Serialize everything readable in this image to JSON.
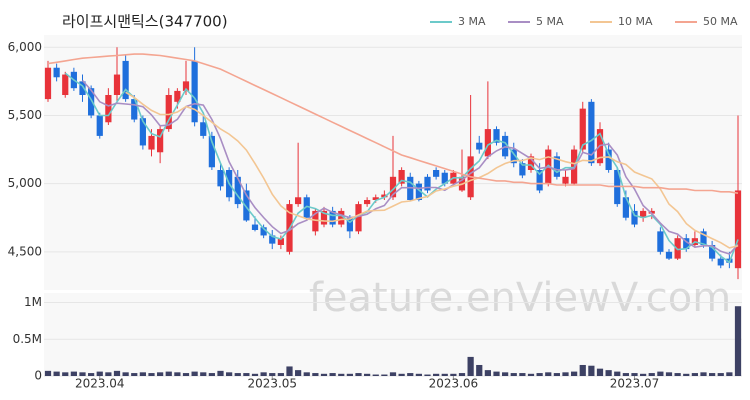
{
  "chart_data": {
    "type": "candlestick",
    "title": "라이프시맨틱스(347700)",
    "watermark": "feature.enViewV.com",
    "up_color": "#e8333a",
    "down_color": "#1f6fdc",
    "grid": true,
    "open": [
      5620,
      5850,
      5650,
      5820,
      5750,
      5700,
      5500,
      5450,
      5650,
      5900,
      5620,
      5480,
      5250,
      5230,
      5400,
      5600,
      5680,
      5900,
      5450,
      5350,
      5100,
      5100,
      5050,
      4950,
      4700,
      4680,
      4620,
      4550,
      4500,
      4850,
      4900,
      4650,
      4700,
      4800,
      4700,
      4750,
      4650,
      4850,
      4880,
      4900,
      4900,
      5000,
      5050,
      5000,
      5050,
      5100,
      5080,
      5000,
      4950,
      4900,
      5300,
      5200,
      5400,
      5350,
      5250,
      5150,
      5100,
      5100,
      5000,
      5200,
      5000,
      5000,
      5250,
      5600,
      5150,
      5250,
      5100,
      4900,
      4800,
      4750,
      4780,
      4650,
      4500,
      4450,
      4600,
      4550,
      4650,
      4550,
      4450,
      4450,
      4380
    ],
    "high": [
      5900,
      5880,
      5820,
      5850,
      5800,
      5720,
      5520,
      5700,
      6000,
      5950,
      5650,
      5500,
      5400,
      5420,
      5700,
      5700,
      5900,
      6000,
      5500,
      5380,
      5150,
      5120,
      5100,
      5000,
      4760,
      4700,
      4660,
      4620,
      4880,
      5300,
      4920,
      4820,
      4830,
      4830,
      4820,
      4770,
      4870,
      4900,
      4920,
      4950,
      5350,
      5120,
      5080,
      5020,
      5070,
      5120,
      5100,
      5100,
      5250,
      5650,
      5350,
      5750,
      5420,
      5380,
      5300,
      5180,
      5220,
      5150,
      5280,
      5230,
      5100,
      5280,
      5600,
      5620,
      5450,
      5300,
      5120,
      4950,
      4850,
      4820,
      4820,
      4680,
      4520,
      4620,
      4630,
      4650,
      4670,
      4580,
      4480,
      4500,
      5500
    ],
    "low": [
      5600,
      5750,
      5630,
      5680,
      5600,
      5480,
      5330,
      5430,
      5600,
      5600,
      5450,
      5250,
      5200,
      5150,
      5380,
      5550,
      5650,
      5420,
      5330,
      5100,
      4950,
      4870,
      4820,
      4720,
      4650,
      4600,
      4520,
      4520,
      4480,
      4830,
      4730,
      4620,
      4680,
      4680,
      4680,
      4600,
      4630,
      4830,
      4860,
      4880,
      4880,
      4980,
      4870,
      4870,
      4930,
      5030,
      4980,
      4980,
      4940,
      4880,
      5220,
      5180,
      5280,
      5180,
      5120,
      5040,
      5080,
      4930,
      4980,
      5030,
      4980,
      4990,
      5230,
      5130,
      5130,
      5080,
      4830,
      4730,
      4680,
      4720,
      4740,
      4480,
      4440,
      4440,
      4500,
      4530,
      4530,
      4430,
      4380,
      4380,
      4300
    ],
    "close": [
      5850,
      5780,
      5800,
      5700,
      5650,
      5500,
      5350,
      5650,
      5800,
      5620,
      5470,
      5280,
      5350,
      5400,
      5650,
      5680,
      5750,
      5450,
      5350,
      5120,
      4980,
      4900,
      4850,
      4730,
      4660,
      4620,
      4560,
      4600,
      4850,
      4900,
      4750,
      4800,
      4800,
      4700,
      4800,
      4650,
      4850,
      4880,
      4900,
      4920,
      5050,
      5100,
      4880,
      4880,
      4950,
      5050,
      5000,
      5080,
      5050,
      5200,
      5250,
      5400,
      5300,
      5200,
      5150,
      5060,
      5200,
      4950,
      5250,
      5050,
      5050,
      5250,
      5550,
      5150,
      5400,
      5100,
      4850,
      4750,
      4700,
      4800,
      4800,
      4500,
      4450,
      4600,
      4520,
      4600,
      4550,
      4450,
      4400,
      4420,
      4950
    ],
    "ylim": [
      4220,
      6090
    ],
    "yticks": [
      {
        "value": 4500,
        "label": "4,500"
      },
      {
        "value": 5000,
        "label": "5,000"
      },
      {
        "value": 5500,
        "label": "5,500"
      },
      {
        "value": 6000,
        "label": "6,000"
      }
    ],
    "xticks": [
      {
        "value": 6,
        "label": "2023.04"
      },
      {
        "value": 26,
        "label": "2023.05"
      },
      {
        "value": 47,
        "label": "2023.06"
      },
      {
        "value": 68,
        "label": "2023.07"
      }
    ],
    "series": [
      {
        "name": "3 MA",
        "color": "#6ccaca",
        "values": [
          null,
          null,
          5810,
          5760,
          5717,
          5617,
          5500,
          5500,
          5600,
          5690,
          5630,
          5457,
          5367,
          5343,
          5467,
          5577,
          5693,
          5627,
          5517,
          5307,
          5150,
          5000,
          4910,
          4827,
          4747,
          4670,
          4613,
          4593,
          4670,
          4783,
          4833,
          4817,
          4783,
          4767,
          4767,
          4717,
          4767,
          4793,
          4877,
          4900,
          4957,
          5023,
          5010,
          4953,
          4903,
          4960,
          5000,
          5043,
          5043,
          5110,
          5167,
          5283,
          5317,
          5300,
          5217,
          5137,
          5137,
          5070,
          5133,
          5083,
          5117,
          5117,
          5283,
          5317,
          5367,
          5217,
          5117,
          4900,
          4767,
          4750,
          4767,
          4700,
          4583,
          4517,
          4523,
          4573,
          4557,
          4533,
          4467,
          4423,
          4590
        ]
      },
      {
        "name": "5 MA",
        "color": "#a98ec4",
        "values": [
          null,
          null,
          null,
          null,
          5756,
          5686,
          5600,
          5570,
          5590,
          5584,
          5578,
          5564,
          5504,
          5424,
          5430,
          5472,
          5566,
          5586,
          5576,
          5470,
          5330,
          5160,
          5040,
          4916,
          4824,
          4752,
          4684,
          4634,
          4658,
          4706,
          4732,
          4780,
          4820,
          4790,
          4770,
          4750,
          4760,
          4776,
          4816,
          4840,
          4920,
          4970,
          4970,
          4966,
          4972,
          4972,
          4952,
          4992,
          5026,
          5076,
          5116,
          5196,
          5240,
          5270,
          5260,
          5222,
          5182,
          5112,
          5122,
          5102,
          5100,
          5110,
          5230,
          5210,
          5280,
          5290,
          5210,
          5050,
          4960,
          4840,
          4780,
          4710,
          4650,
          4630,
          4574,
          4534,
          4544,
          4544,
          4504,
          4484,
          4554
        ]
      },
      {
        "name": "10 MA",
        "color": "#f3c693",
        "values": [
          null,
          null,
          null,
          null,
          null,
          null,
          null,
          null,
          null,
          5670,
          5632,
          5582,
          5537,
          5507,
          5507,
          5525,
          5565,
          5545,
          5500,
          5450,
          5401,
          5363,
          5313,
          5246,
          5147,
          5041,
          4922,
          4837,
          4787,
          4765,
          4742,
          4732,
          4727,
          4724,
          4738,
          4741,
          4770,
          4798,
          4803,
          4805,
          4835,
          4865,
          4873,
          4891,
          4906,
          4946,
          4961,
          4981,
          4996,
          5024,
          5044,
          5074,
          5116,
          5148,
          5168,
          5169,
          5189,
          5176,
          5196,
          5181,
          5161,
          5146,
          5171,
          5166,
          5191,
          5195,
          5160,
          5140,
          5085,
          5060,
          5035,
          4960,
          4850,
          4795,
          4707,
          4657,
          4627,
          4597,
          4567,
          4529,
          4544
        ]
      },
      {
        "name": "50 MA",
        "color": "#f4a591",
        "values": [
          5880,
          5890,
          5900,
          5910,
          5920,
          5925,
          5930,
          5935,
          5940,
          5945,
          5950,
          5950,
          5945,
          5940,
          5930,
          5920,
          5910,
          5900,
          5880,
          5860,
          5840,
          5810,
          5780,
          5750,
          5720,
          5690,
          5660,
          5630,
          5600,
          5570,
          5540,
          5510,
          5480,
          5450,
          5420,
          5390,
          5360,
          5330,
          5300,
          5270,
          5240,
          5210,
          5190,
          5170,
          5150,
          5130,
          5110,
          5090,
          5070,
          5050,
          5040,
          5030,
          5020,
          5020,
          5010,
          5010,
          5000,
          5000,
          5000,
          4990,
          4990,
          4990,
          4990,
          4990,
          4990,
          4980,
          4980,
          4980,
          4980,
          4970,
          4970,
          4970,
          4960,
          4960,
          4960,
          4950,
          4950,
          4950,
          4940,
          4940,
          4930
        ]
      }
    ],
    "volume": {
      "color": "#3d4164",
      "ylim": [
        0,
        1130000
      ],
      "yticks": [
        0,
        {
          "value": 500000,
          "label": "0.5M"
        },
        {
          "value": 1000000,
          "label": "1M"
        }
      ],
      "values": [
        70000,
        60000,
        50000,
        60000,
        50000,
        40000,
        60000,
        50000,
        70000,
        50000,
        40000,
        50000,
        40000,
        50000,
        60000,
        50000,
        40000,
        60000,
        50000,
        40000,
        70000,
        50000,
        40000,
        40000,
        30000,
        50000,
        40000,
        40000,
        130000,
        80000,
        50000,
        40000,
        30000,
        40000,
        30000,
        30000,
        40000,
        30000,
        20000,
        20000,
        50000,
        30000,
        40000,
        30000,
        20000,
        30000,
        30000,
        30000,
        40000,
        260000,
        150000,
        80000,
        60000,
        50000,
        40000,
        40000,
        30000,
        40000,
        50000,
        40000,
        50000,
        60000,
        150000,
        140000,
        100000,
        80000,
        60000,
        40000,
        40000,
        30000,
        40000,
        60000,
        50000,
        40000,
        30000,
        40000,
        50000,
        40000,
        40000,
        50000,
        950000
      ]
    }
  }
}
